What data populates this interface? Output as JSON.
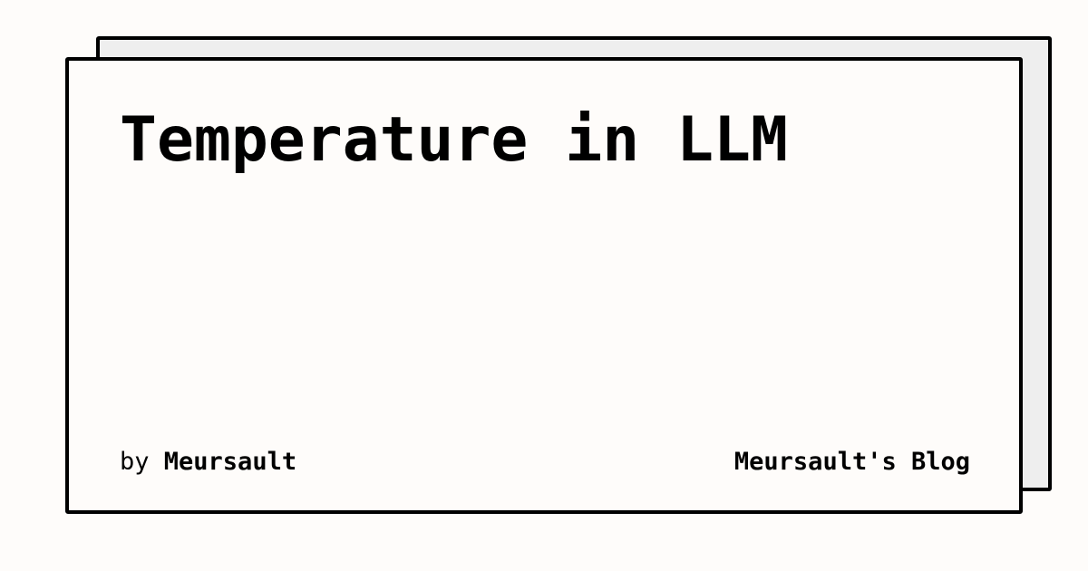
{
  "card": {
    "title": "Temperature in LLM",
    "byline_prefix": "by",
    "author": "Meursault",
    "blog_name": "Meursault's Blog"
  },
  "colors": {
    "background": "#fefcfa",
    "card_back": "#eeeeee",
    "border": "#000000",
    "text": "#000000"
  }
}
